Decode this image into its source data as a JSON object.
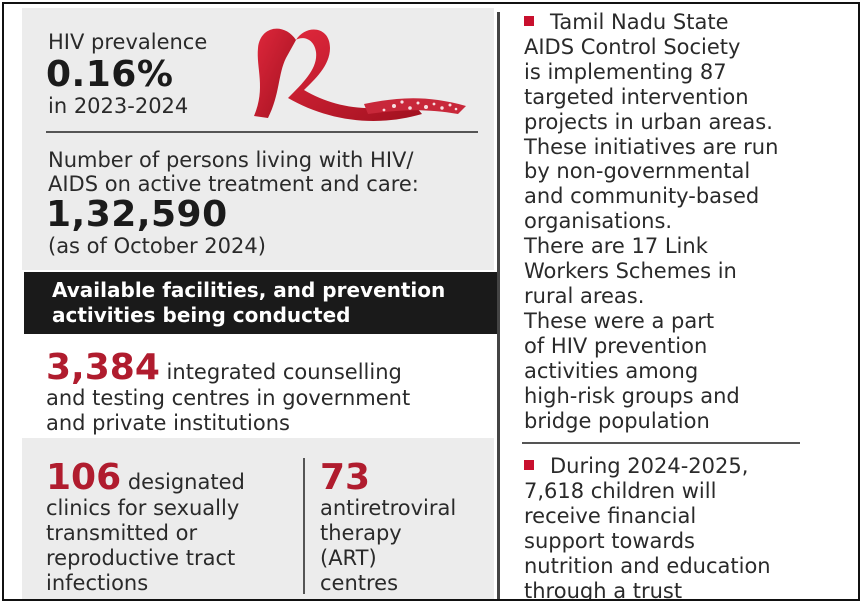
{
  "left": {
    "prevalence": {
      "label": "HIV prevalence",
      "value": "0.16%",
      "period": "in 2023-2024"
    },
    "treatment": {
      "label_line1": "Number of persons living with HIV/",
      "label_line2": "AIDS on active treatment and care:",
      "value": "1,32,590",
      "note": "(as of October 2024)"
    },
    "facilities_header": {
      "line1": "Available facilities, and prevention",
      "line2": "activities being conducted"
    },
    "ictc": {
      "number": "3,384",
      "text_line1": " integrated counselling",
      "text_line2": "and testing centres in government",
      "text_line3": "and private institutions"
    },
    "clinics": {
      "number": "106",
      "text_line1": " designated",
      "text_line2": "clinics for sexually",
      "text_line3": "transmitted or",
      "text_line4": "reproductive tract",
      "text_line5": "infections"
    },
    "art": {
      "number": "73",
      "text_line1": "antiretroviral",
      "text_line2": "therapy",
      "text_line3": "(ART)",
      "text_line4": "centres"
    }
  },
  "right": {
    "block1": "Tamil Nadu State\nAIDS Control Society\nis implementing 87\ntargeted intervention\nprojects in urban areas.\nThese initiatives are run\nby non-governmental\nand community-based\norganisations.\nThere are 17 Link\nWorkers Schemes in\nrural areas.\nThese were a part\nof HIV prevention\nactivities among\nhigh-risk groups and\nbridge population",
    "block2": "During 2024-2025,\n7,618 children will\nreceive financial\nsupport towards\nnutrition and education\nthrough a trust"
  },
  "colors": {
    "accent_red": "#b01c2e",
    "panel_gray": "#ececec",
    "header_black": "#1a1a1a"
  },
  "icons": {
    "ribbon": "red-awareness-ribbon-icon",
    "bullet": "red-square-bullet-icon"
  }
}
